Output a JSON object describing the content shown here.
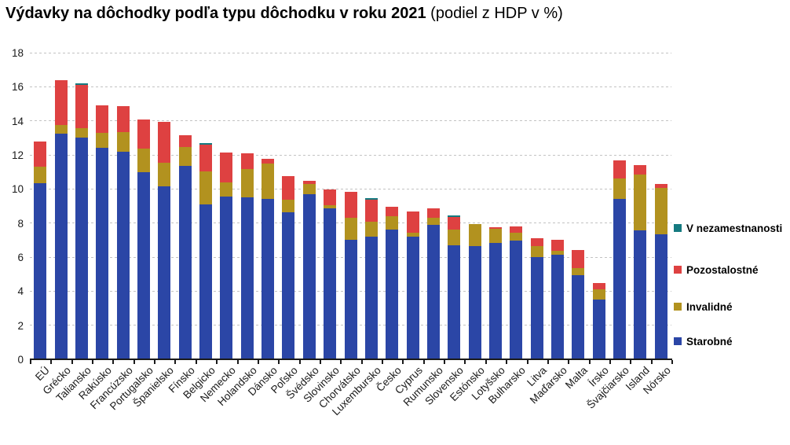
{
  "title": {
    "bold": "Výdavky na dôchodky podľa typu dôchodku v roku 2021",
    "normal": " (podiel z HDP v %)"
  },
  "chart_data": {
    "type": "bar",
    "stacked": true,
    "title": "Výdavky na dôchodky podľa typu dôchodku v roku 2021",
    "subtitle": "(podiel z HDP v %)",
    "xlabel": "",
    "ylabel": "",
    "ylim": [
      0,
      18
    ],
    "ytick_step": 2,
    "grid": "horizontal-dotted",
    "legend_position": "right",
    "categories": [
      "EÚ",
      "Grécko",
      "Taliansko",
      "Rakúsko",
      "Francúzsko",
      "Portugalsko",
      "Španielsko",
      "Fínsko",
      "Belgicko",
      "Nemecko",
      "Holandsko",
      "Dánsko",
      "Poľsko",
      "Švédsko",
      "Slovinsko",
      "Chorvátsko",
      "Luxembursko",
      "Česko",
      "Cyprus",
      "Rumunsko",
      "Slovensko",
      "Estónsko",
      "Lotyšsko",
      "Bulharsko",
      "Litva",
      "Maďarsko",
      "Malta",
      "Írsko",
      "Švajčiarsko",
      "Island",
      "Nórsko"
    ],
    "series": [
      {
        "name": "Starobné",
        "color": "#2B46A6",
        "values": [
          10.35,
          13.25,
          13.0,
          12.4,
          12.2,
          11.0,
          10.15,
          11.35,
          9.1,
          9.55,
          9.5,
          9.4,
          8.65,
          9.7,
          8.85,
          7.0,
          7.2,
          7.6,
          7.2,
          7.9,
          6.7,
          6.65,
          6.85,
          6.95,
          6.0,
          6.15,
          4.95,
          3.5,
          9.4,
          7.55,
          7.35
        ]
      },
      {
        "name": "Invalidné",
        "color": "#B2921F",
        "values": [
          0.95,
          0.5,
          0.55,
          0.9,
          1.15,
          1.35,
          1.4,
          1.1,
          1.95,
          0.85,
          1.65,
          2.1,
          0.7,
          0.6,
          0.2,
          1.3,
          0.9,
          0.8,
          0.25,
          0.4,
          0.9,
          1.3,
          0.8,
          0.5,
          0.65,
          0.2,
          0.4,
          0.6,
          1.2,
          3.3,
          2.7
        ]
      },
      {
        "name": "Pozostalostné",
        "color": "#DE4141",
        "values": [
          1.5,
          2.65,
          2.55,
          1.6,
          1.5,
          1.75,
          2.4,
          0.7,
          1.55,
          1.75,
          0.95,
          0.25,
          1.4,
          0.2,
          0.9,
          1.55,
          1.25,
          0.55,
          1.25,
          0.55,
          0.75,
          0.0,
          0.1,
          0.35,
          0.45,
          0.65,
          1.05,
          0.4,
          1.1,
          0.55,
          0.25
        ]
      },
      {
        "name": "V nezamestnanosti",
        "color": "#157A80",
        "values": [
          0,
          0,
          0.1,
          0,
          0,
          0,
          0,
          0,
          0.1,
          0,
          0,
          0,
          0,
          0,
          0,
          0,
          0.1,
          0,
          0,
          0,
          0.1,
          0,
          0,
          0,
          0,
          0,
          0,
          0,
          0,
          0,
          0
        ]
      }
    ],
    "legend_order": [
      "V nezamestnanosti",
      "Pozostalostné",
      "Invalidné",
      "Starobné"
    ],
    "ytick_labels": [
      "0",
      "2",
      "4",
      "6",
      "8",
      "10",
      "12",
      "14",
      "16",
      "18"
    ]
  }
}
